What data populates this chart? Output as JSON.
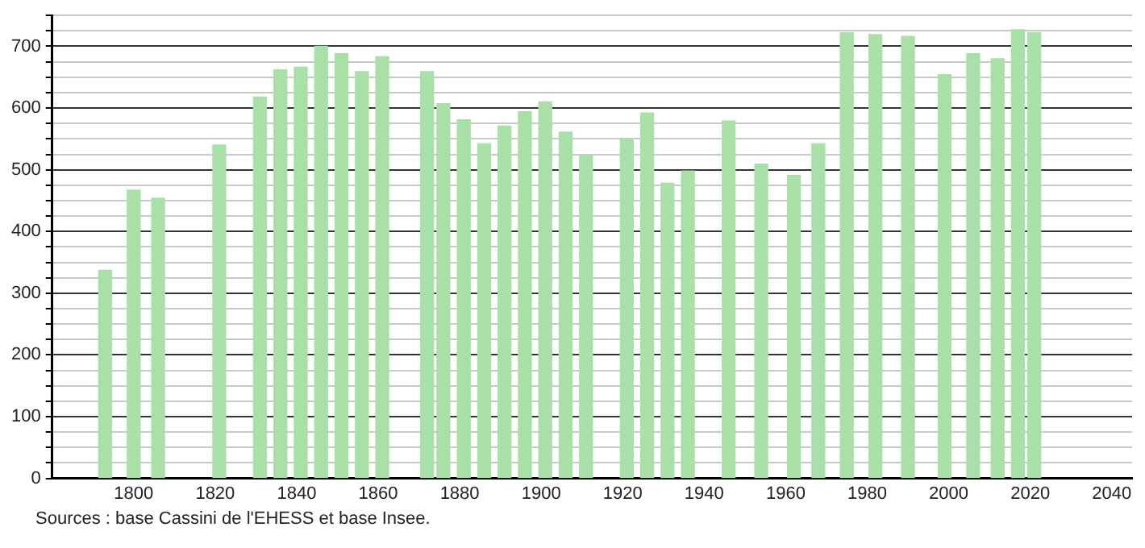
{
  "chart_data": {
    "type": "bar",
    "x": [
      1793,
      1800,
      1806,
      1821,
      1831,
      1836,
      1841,
      1846,
      1851,
      1856,
      1861,
      1872,
      1876,
      1881,
      1886,
      1891,
      1896,
      1901,
      1906,
      1911,
      1921,
      1926,
      1931,
      1936,
      1946,
      1954,
      1962,
      1968,
      1975,
      1982,
      1990,
      1999,
      2006,
      2012,
      2017,
      2021
    ],
    "values": [
      337,
      467,
      454,
      540,
      618,
      662,
      666,
      700,
      688,
      659,
      683,
      659,
      607,
      581,
      542,
      571,
      594,
      610,
      561,
      523,
      550,
      592,
      478,
      498,
      579,
      509,
      491,
      542,
      722,
      719,
      716,
      654,
      688,
      680,
      727,
      722
    ],
    "color": "#a8e0a8",
    "xlim": [
      1780,
      2045
    ],
    "xticks": [
      1800,
      1820,
      1840,
      1860,
      1880,
      1900,
      1920,
      1940,
      1960,
      1980,
      2000,
      2020,
      2040
    ],
    "ylim": [
      0,
      750
    ],
    "yticks": [
      0,
      {
        "value": 25,
        "label": null
      },
      {
        "value": 50,
        "label": null
      },
      {
        "value": 75,
        "label": null
      },
      100,
      {
        "value": 125,
        "label": null
      },
      {
        "value": 150,
        "label": null
      },
      {
        "value": 175,
        "label": null
      },
      200,
      {
        "value": 225,
        "label": null
      },
      {
        "value": 250,
        "label": null
      },
      {
        "value": 275,
        "label": null
      },
      300,
      {
        "value": 325,
        "label": null
      },
      {
        "value": 350,
        "label": null
      },
      {
        "value": 375,
        "label": null
      },
      400,
      {
        "value": 425,
        "label": null
      },
      {
        "value": 450,
        "label": null
      },
      {
        "value": 475,
        "label": null
      },
      500,
      {
        "value": 525,
        "label": null
      },
      {
        "value": 550,
        "label": null
      },
      {
        "value": 575,
        "label": null
      },
      600,
      {
        "value": 625,
        "label": null
      },
      {
        "value": 650,
        "label": null
      },
      {
        "value": 675,
        "label": null
      },
      700,
      {
        "value": 725,
        "label": null
      },
      {
        "value": 750,
        "label": null
      }
    ],
    "grid": "y",
    "legend": false,
    "annotations": [
      "Sources : base Cassini de l'EHESS et base Insee."
    ]
  }
}
